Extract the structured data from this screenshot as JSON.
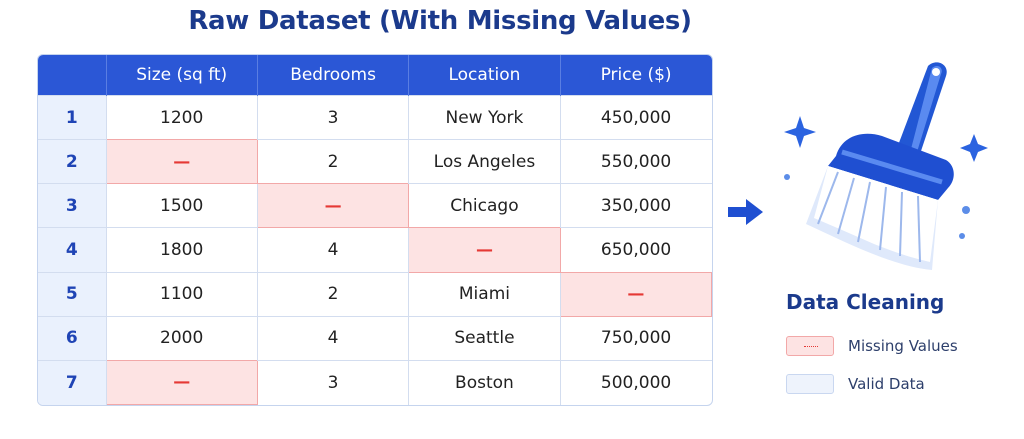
{
  "title": "Raw Dataset (With Missing Values)",
  "table": {
    "headers": [
      "",
      "Size (sq ft)",
      "Bedrooms",
      "Location",
      "Price ($)"
    ],
    "rows": [
      {
        "index": "1",
        "size": "1200",
        "bedrooms": "3",
        "location": "New York",
        "price": "450,000",
        "missing": []
      },
      {
        "index": "2",
        "size": "—",
        "bedrooms": "2",
        "location": "Los Angeles",
        "price": "550,000",
        "missing": [
          "size"
        ]
      },
      {
        "index": "3",
        "size": "1500",
        "bedrooms": "—",
        "location": "Chicago",
        "price": "350,000",
        "missing": [
          "bedrooms"
        ]
      },
      {
        "index": "4",
        "size": "1800",
        "bedrooms": "4",
        "location": "—",
        "price": "650,000",
        "missing": [
          "location"
        ]
      },
      {
        "index": "5",
        "size": "1100",
        "bedrooms": "2",
        "location": "Miami",
        "price": "—",
        "missing": [
          "price"
        ]
      },
      {
        "index": "6",
        "size": "2000",
        "bedrooms": "4",
        "location": "Seattle",
        "price": "750,000",
        "missing": []
      },
      {
        "index": "7",
        "size": "—",
        "bedrooms": "3",
        "location": "Boston",
        "price": "500,000",
        "missing": [
          "size"
        ]
      }
    ]
  },
  "legend": {
    "title": "Data Cleaning",
    "items": [
      {
        "label": "Missing Values",
        "kind": "missing"
      },
      {
        "label": "Valid Data",
        "kind": "valid"
      }
    ]
  },
  "icons": {
    "arrow": "right-arrow-icon",
    "brush": "cleaning-brush-icon",
    "sparkles": "sparkle-icon"
  },
  "colors": {
    "header": "#2b57d6",
    "title": "#1b3a8c",
    "missing_fill": "#fde3e3",
    "missing_mark": "#e53935",
    "index_fill": "#eaf1fd",
    "valid_fill": "#eef3fc"
  }
}
